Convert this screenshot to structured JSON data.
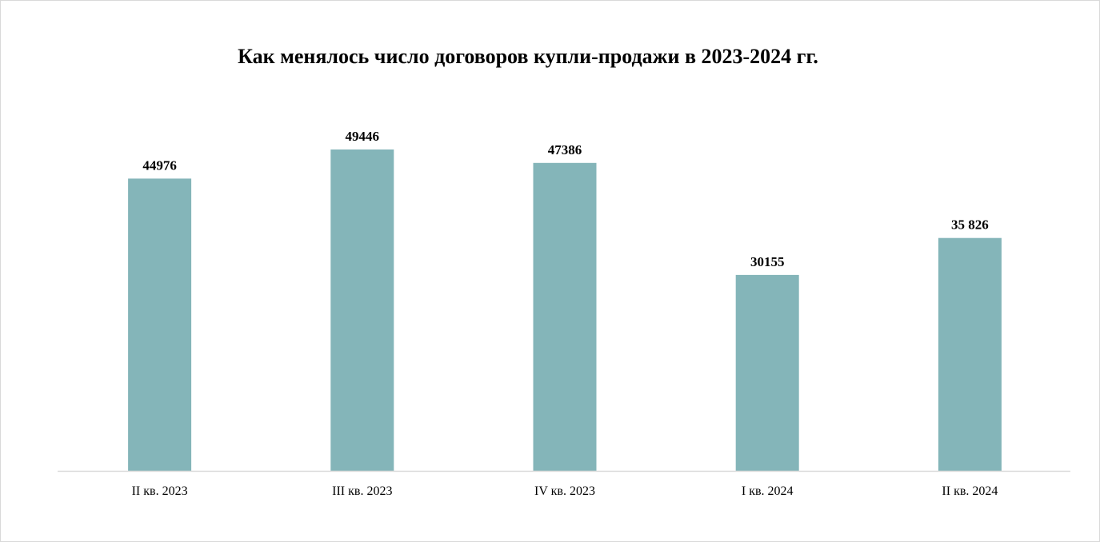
{
  "chart_data": {
    "type": "bar",
    "title": "Как менялось число договоров купли-продажи в 2023-2024 гг.",
    "xlabel": "",
    "ylabel": "",
    "categories": [
      "II кв. 2023",
      "III кв. 2023",
      "IV кв. 2023",
      "I кв. 2024",
      "II кв. 2024"
    ],
    "values": [
      44976,
      49446,
      47386,
      30155,
      35826
    ],
    "value_labels": [
      "44976",
      "49446",
      "47386",
      "30155",
      "35 826"
    ],
    "ylim": [
      0,
      54000
    ],
    "grid": false,
    "legend": "none",
    "bar_color": "#84b5b9",
    "axis_color": "#d9d9d9"
  }
}
